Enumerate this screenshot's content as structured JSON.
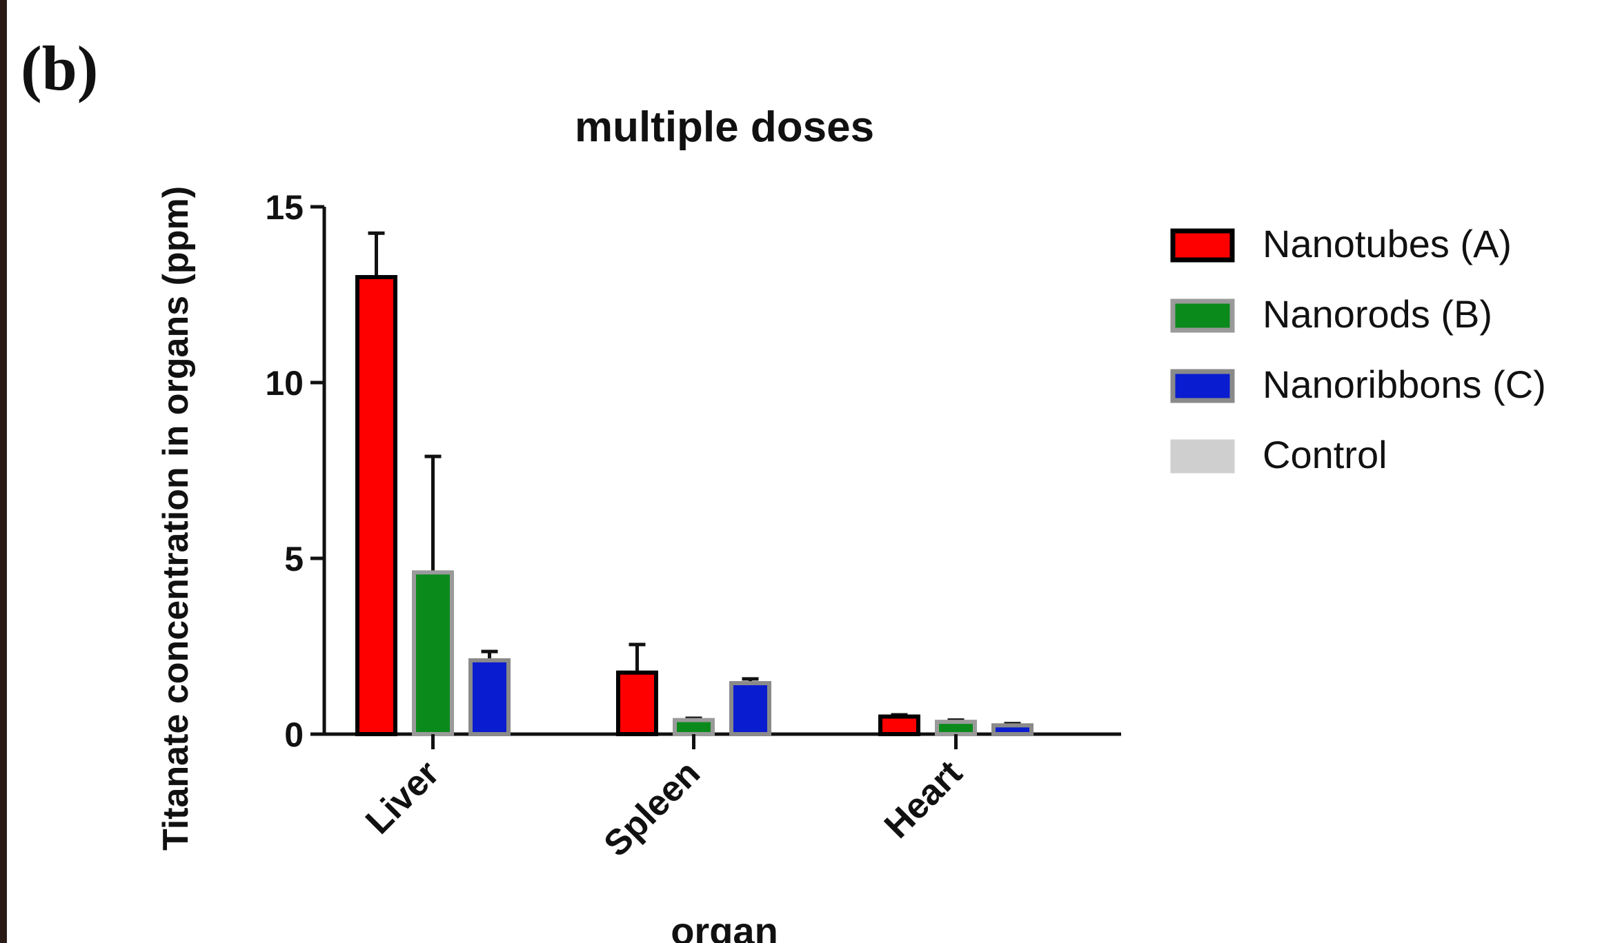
{
  "panel_label": "(b)",
  "chart_data": {
    "type": "bar",
    "title": "multiple doses",
    "xlabel": "organ",
    "ylabel": "Titanate concentration in organs (ppm)",
    "categories": [
      "Liver",
      "Spleen",
      "Heart"
    ],
    "ylim": [
      0,
      15
    ],
    "yticks": [
      0,
      5,
      10,
      15
    ],
    "grid": false,
    "legend_position": "right",
    "series": [
      {
        "name": "Nanotubes (A)",
        "values": [
          13.0,
          1.75,
          0.5
        ],
        "errors": [
          1.25,
          0.8,
          0.05
        ],
        "color": "#ff0000",
        "border": "#000000"
      },
      {
        "name": "Nanorods (B)",
        "values": [
          4.6,
          0.4,
          0.35
        ],
        "errors": [
          3.3,
          0.05,
          0.05
        ],
        "color": "#0b8a1c",
        "border": "#9a9a9a"
      },
      {
        "name": "Nanoribbons (C)",
        "values": [
          2.1,
          1.45,
          0.25
        ],
        "errors": [
          0.25,
          0.12,
          0.05
        ],
        "color": "#0a1ccf",
        "border": "#8a8a8a"
      },
      {
        "name": "Control",
        "values": [
          null,
          null,
          null
        ],
        "errors": [
          null,
          null,
          null
        ],
        "color": "#cfcfcf",
        "border": "#cfcfcf"
      }
    ]
  }
}
